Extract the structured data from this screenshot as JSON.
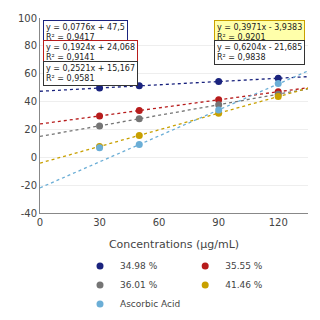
{
  "chart_data": {
    "type": "scatter",
    "xlabel": "Concentrations (μg/mL)",
    "xlim": [
      0,
      135
    ],
    "xticks": [
      0,
      30,
      60,
      90,
      120
    ],
    "ylim": [
      -40,
      100
    ],
    "yticks": [
      -40,
      -20,
      0,
      20,
      40,
      60,
      80,
      100
    ],
    "grid": true,
    "legend": "bottom",
    "series": [
      {
        "name": "34.98 %",
        "color": "#1a237e",
        "x": [
          30,
          50,
          90,
          120
        ],
        "values": [
          49.8,
          51.4,
          54.5,
          56.8
        ],
        "trend": {
          "x": [
            0,
            135
          ],
          "values": [
            47.5,
            57.976
          ],
          "line_style": "dotted"
        }
      },
      {
        "name": "35.55 %",
        "color": "#b71c1c",
        "x": [
          30,
          50,
          90,
          120
        ],
        "values": [
          29.8,
          33.7,
          41.4,
          47.2
        ],
        "trend": {
          "x": [
            0,
            135
          ],
          "values": [
            24.068,
            50.042
          ],
          "line_style": "dotted"
        }
      },
      {
        "name": "36.01 %",
        "color": "#757575",
        "x": [
          30,
          50,
          90,
          120
        ],
        "values": [
          22.7,
          27.8,
          37.9,
          45.4
        ],
        "trend": {
          "x": [
            0,
            135
          ],
          "values": [
            15.167,
            49.2005
          ],
          "line_style": "dotted"
        }
      },
      {
        "name": "41.46 %",
        "color": "#c8a000",
        "x": [
          30,
          50,
          90,
          120
        ],
        "values": [
          7.97,
          15.9,
          31.8,
          43.7
        ],
        "trend": {
          "x": [
            0,
            135
          ],
          "values": [
            -3.9383,
            49.6702
          ],
          "line_style": "dotted"
        }
      },
      {
        "name": "Ascorbic Acid",
        "color": "#6baed6",
        "x": [
          30,
          50,
          90,
          120
        ],
        "values": [
          7.0,
          9.3,
          34.1,
          53.0
        ],
        "trend": {
          "x": [
            0,
            135
          ],
          "values": [
            -21.685,
            62.069
          ],
          "line_style": "dotted"
        }
      }
    ],
    "annotations": [
      {
        "text": [
          "y = 0,0776x + 47,5",
          "R² = 0,9417"
        ],
        "color": "#1a237e",
        "fill": "white"
      },
      {
        "text": [
          "y = 0,1924x + 24,068",
          "R² = 0,9141"
        ],
        "color": "#b71c1c",
        "fill": "white"
      },
      {
        "text": [
          "y = 0,2521x + 15,167",
          "R² = 0,9581"
        ],
        "color": "#333333",
        "fill": "white"
      },
      {
        "text": [
          "y = 0,3971x - 3,9383",
          "R² = 0,9201"
        ],
        "color": "#c8a000",
        "fill": "#ffffaa"
      },
      {
        "text": [
          "y = 0,6204x - 21,685",
          "R² = 0,9838"
        ],
        "color": "#333333",
        "fill": "white"
      }
    ]
  }
}
